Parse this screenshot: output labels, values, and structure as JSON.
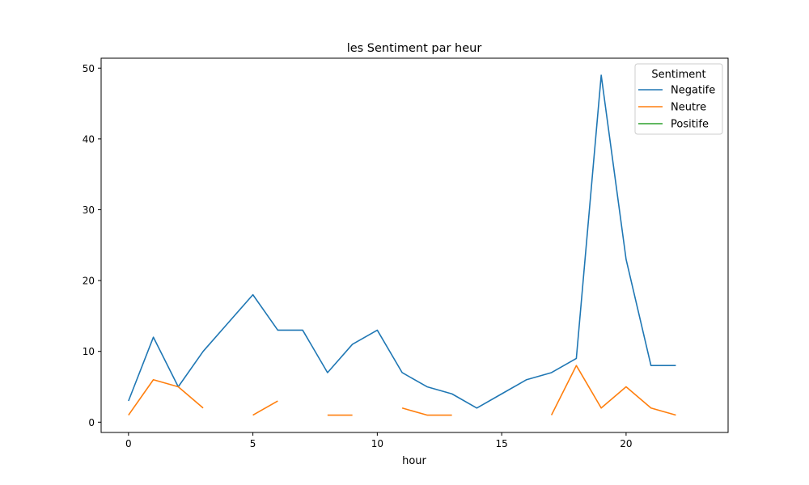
{
  "chart_data": {
    "type": "line",
    "title": "les Sentiment par heur",
    "xlabel": "hour",
    "ylabel": "",
    "xlim": [
      -1.1,
      24.1
    ],
    "ylim": [
      -1.45,
      51.4
    ],
    "xticks": [
      0,
      5,
      10,
      15,
      20
    ],
    "yticks": [
      0,
      10,
      20,
      30,
      40,
      50
    ],
    "grid": false,
    "legend": {
      "title": "Sentiment",
      "placement": "top-right"
    },
    "series": [
      {
        "name": "Negatife",
        "color": "#1f77b4",
        "x": [
          0,
          1,
          2,
          3,
          4,
          5,
          6,
          7,
          8,
          9,
          10,
          11,
          12,
          13,
          14,
          15,
          16,
          17,
          18,
          19,
          20,
          21,
          22
        ],
        "y": [
          3,
          12,
          5,
          10,
          14,
          18,
          13,
          13,
          7,
          11,
          13,
          7,
          5,
          4,
          2,
          4,
          6,
          7,
          9,
          49,
          23,
          8,
          8
        ]
      },
      {
        "name": "Neutre",
        "color": "#ff7f0e",
        "x": [
          0,
          1,
          2,
          3,
          4,
          5,
          6,
          7,
          8,
          9,
          10,
          11,
          12,
          13,
          14,
          15,
          16,
          17,
          18,
          19,
          20,
          21,
          22
        ],
        "y": [
          1,
          6,
          5,
          2,
          null,
          1,
          3,
          null,
          1,
          1,
          null,
          2,
          1,
          1,
          null,
          null,
          null,
          1,
          8,
          2,
          5,
          2,
          1
        ]
      },
      {
        "name": "Positife",
        "color": "#2ca02c",
        "x": [],
        "y": []
      }
    ]
  }
}
